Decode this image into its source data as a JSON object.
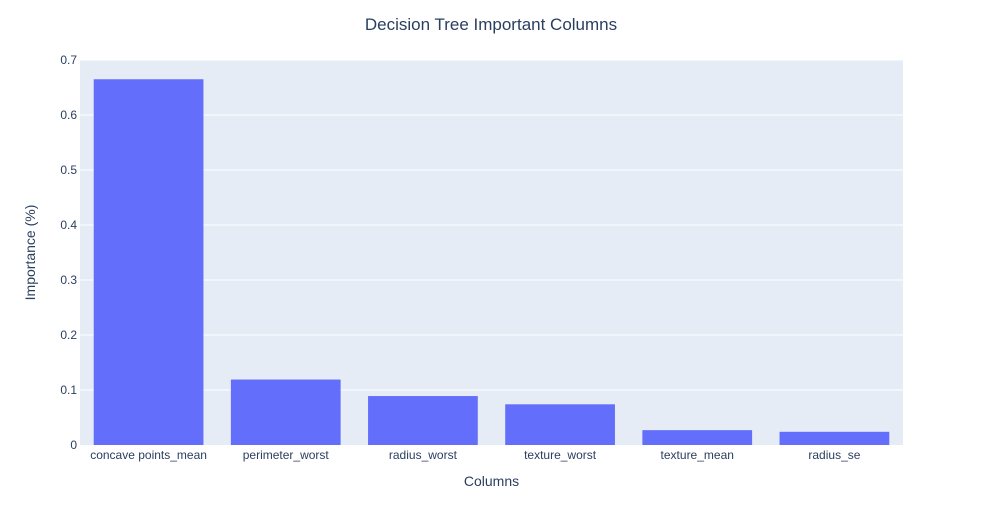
{
  "chart_data": {
    "type": "bar",
    "title": "Decision Tree Important Columns",
    "xlabel": "Columns",
    "ylabel": "Importance (%)",
    "categories": [
      "concave points_mean",
      "perimeter_worst",
      "radius_worst",
      "texture_worst",
      "texture_mean",
      "radius_se"
    ],
    "values": [
      0.665,
      0.119,
      0.089,
      0.074,
      0.027,
      0.024
    ],
    "ylim": [
      0,
      0.7
    ],
    "yticks": [
      "0",
      "0.1",
      "0.2",
      "0.3",
      "0.4",
      "0.5",
      "0.6",
      "0.7"
    ],
    "grid": true,
    "legend": "none",
    "colors": {
      "bar": "#636efa",
      "plot_background": "#e5ecf6",
      "gridline": "#ffffff",
      "text": "#2a3f5f"
    }
  }
}
